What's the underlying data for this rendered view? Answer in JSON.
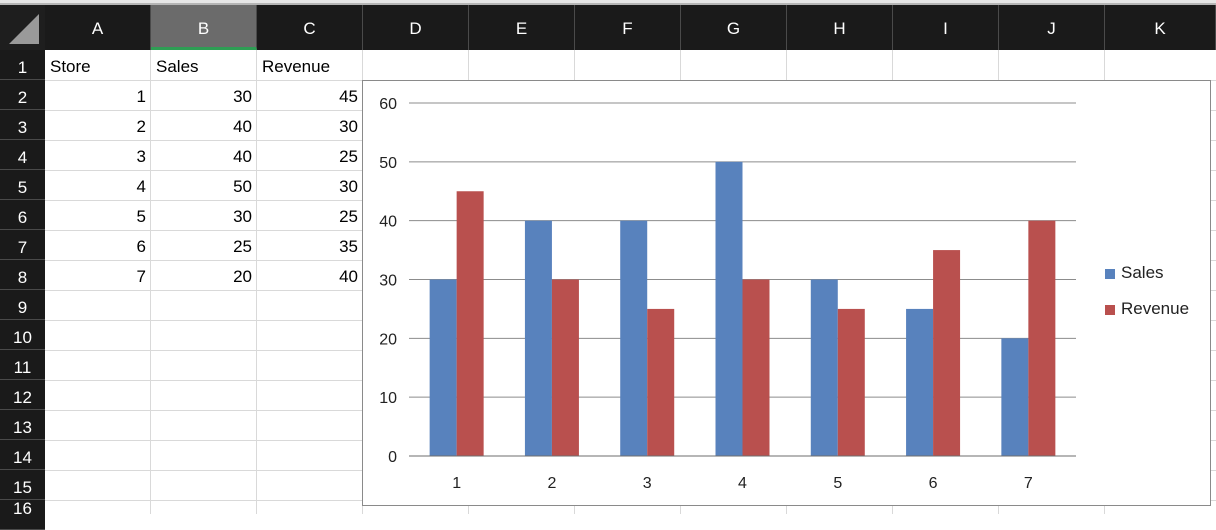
{
  "spreadsheet": {
    "columns": [
      "A",
      "B",
      "C",
      "D",
      "E",
      "F",
      "G",
      "H",
      "I",
      "J",
      "K"
    ],
    "active_column": "B",
    "rows": [
      "1",
      "2",
      "3",
      "4",
      "5",
      "6",
      "7",
      "8",
      "9",
      "10",
      "11",
      "12",
      "13",
      "14",
      "15",
      "16"
    ],
    "headers": [
      "Store",
      "Sales",
      "Revenue"
    ],
    "data": [
      [
        "1",
        "30",
        "45"
      ],
      [
        "2",
        "40",
        "30"
      ],
      [
        "3",
        "40",
        "25"
      ],
      [
        "4",
        "50",
        "30"
      ],
      [
        "5",
        "30",
        "25"
      ],
      [
        "6",
        "25",
        "35"
      ],
      [
        "7",
        "20",
        "40"
      ]
    ]
  },
  "colors": {
    "sales": "#5882bd",
    "revenue": "#b9504e",
    "grid": "#8c8c8c"
  },
  "chart_data": {
    "type": "bar",
    "categories": [
      "1",
      "2",
      "3",
      "4",
      "5",
      "6",
      "7"
    ],
    "series": [
      {
        "name": "Sales",
        "values": [
          30,
          40,
          40,
          50,
          30,
          25,
          20
        ]
      },
      {
        "name": "Revenue",
        "values": [
          45,
          30,
          25,
          30,
          25,
          35,
          40
        ]
      }
    ],
    "ylim": [
      0,
      60
    ],
    "yticks": [
      "0",
      "10",
      "20",
      "30",
      "40",
      "50",
      "60"
    ],
    "grid": true,
    "legend_position": "right",
    "title": "",
    "xlabel": "",
    "ylabel": ""
  }
}
